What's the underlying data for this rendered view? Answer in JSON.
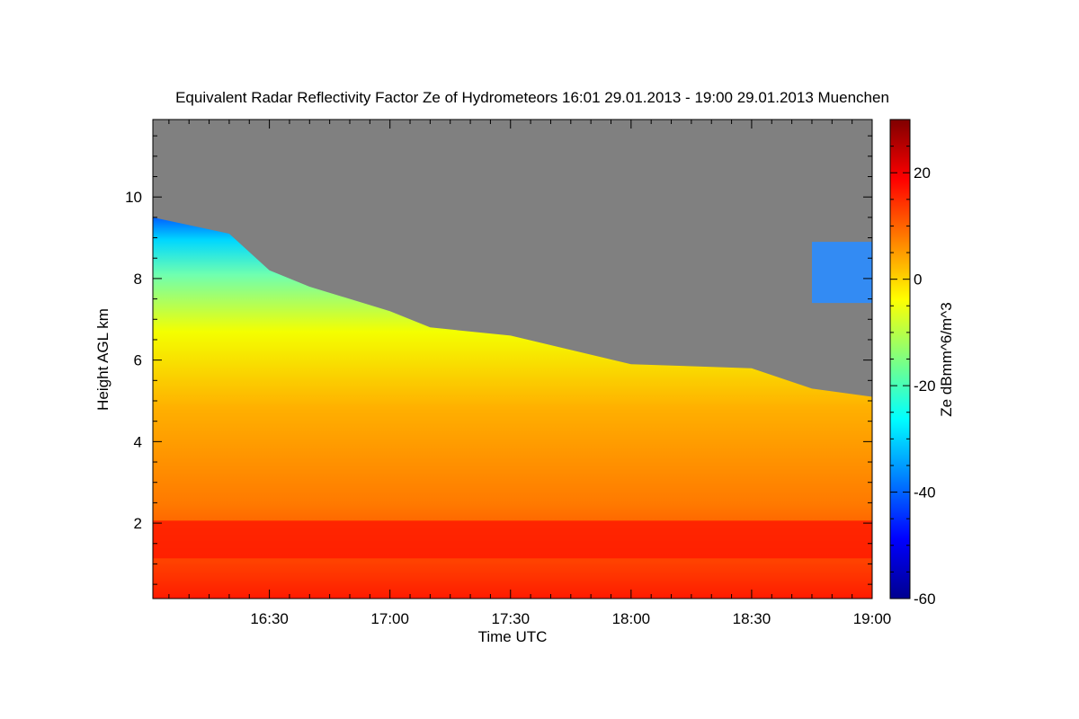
{
  "chart_data": {
    "type": "heatmap",
    "title": "Equivalent Radar Reflectivity Factor Ze of Hydrometeors   16:01 29.01.2013 - 19:00 29.01.2013 Muenchen",
    "xlabel": "Time UTC",
    "ylabel": "Height AGL km",
    "colorbar_label": "Ze dBmm^6/m^3",
    "x_range": [
      "16:01",
      "19:00"
    ],
    "x_tick_labels": [
      "16:30",
      "17:00",
      "17:30",
      "18:00",
      "18:30",
      "19:00"
    ],
    "y_range_km": [
      0.15,
      11.9
    ],
    "y_ticks": [
      2,
      4,
      6,
      8,
      10
    ],
    "colorbar_range": [
      -60,
      30
    ],
    "colorbar_ticks": [
      -60,
      -40,
      -20,
      0,
      20
    ],
    "colormap": "jet",
    "no_echo_color": "#808080",
    "cloud_top_km": [
      {
        "time": "16:01",
        "height": 9.5
      },
      {
        "time": "16:20",
        "height": 9.1
      },
      {
        "time": "16:30",
        "height": 8.2
      },
      {
        "time": "16:40",
        "height": 7.8
      },
      {
        "time": "17:00",
        "height": 7.2
      },
      {
        "time": "17:10",
        "height": 6.8
      },
      {
        "time": "17:30",
        "height": 6.6
      },
      {
        "time": "18:00",
        "height": 5.9
      },
      {
        "time": "18:30",
        "height": 5.8
      },
      {
        "time": "18:45",
        "height": 5.3
      },
      {
        "time": "19:00",
        "height": 5.1
      }
    ],
    "melting_layer_km": 1.4,
    "upper_cloud_patches": [
      {
        "start": "18:45",
        "end": "19:00",
        "bottom_km": 7.4,
        "top_km": 8.9
      }
    ]
  }
}
